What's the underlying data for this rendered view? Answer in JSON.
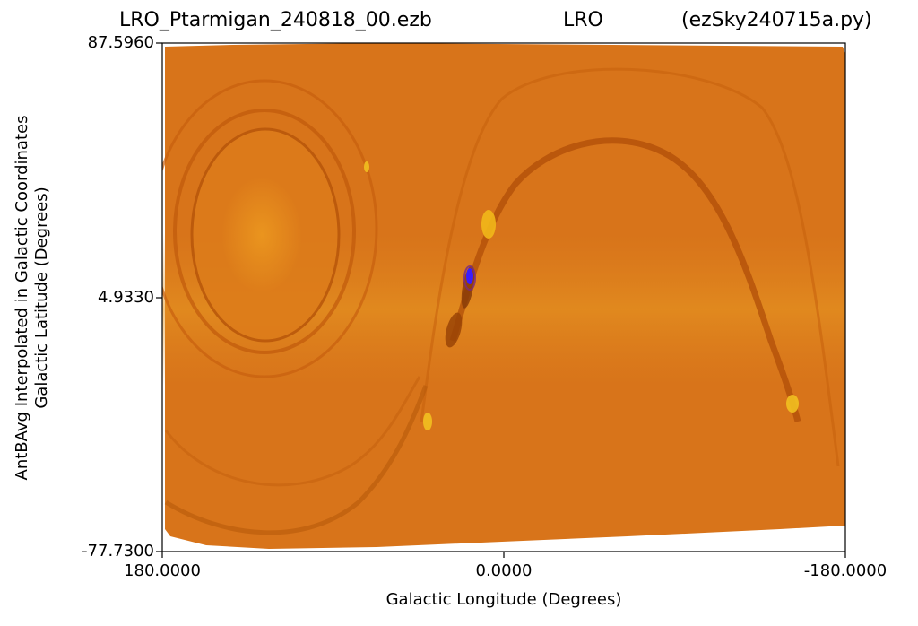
{
  "title": {
    "left": "LRO_Ptarmigan_240818_00.ezb",
    "center": "LRO",
    "right": "(ezSky240715a.py)"
  },
  "chart_data": {
    "type": "heatmap",
    "xlabel": "Galactic Longitude (Degrees)",
    "ylabel_line1": "AntBAvg Interpolated in Galactic Coordinates",
    "ylabel_line2": "Galactic Latitude (Degrees)",
    "x_ticks": [
      "180.0000",
      "0.0000",
      "-180.0000"
    ],
    "y_ticks": [
      "87.5960",
      "4.9330",
      "-77.7300"
    ],
    "xlim": [
      180,
      -180
    ],
    "ylim": [
      -77.73,
      87.596
    ],
    "colormap": [
      "#3a1cff",
      "#a04a00",
      "#d06a10",
      "#f0b800"
    ],
    "background_color": "#d87412"
  }
}
